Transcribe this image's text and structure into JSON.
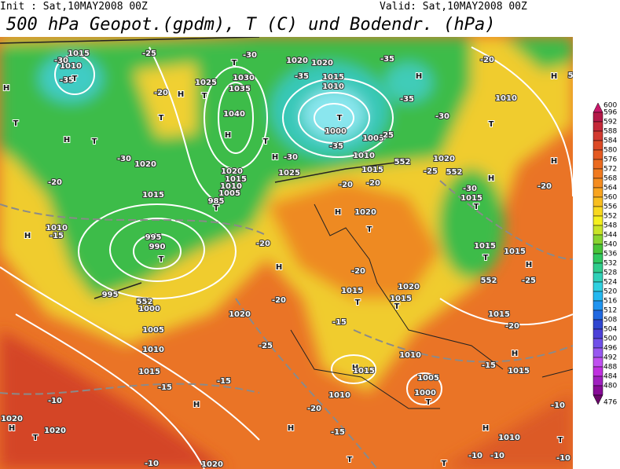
{
  "header": {
    "init": "Init : Sat,10MAY2008 00Z",
    "valid": "Valid: Sat,10MAY2008 00Z",
    "title": "500 hPa Geopot.(gpdm), T (C) und Bodendr. (hPa)"
  },
  "legend": {
    "levels": [
      600,
      596,
      592,
      588,
      584,
      580,
      576,
      572,
      568,
      564,
      560,
      556,
      552,
      548,
      544,
      540,
      536,
      532,
      528,
      524,
      520,
      516,
      512,
      508,
      504,
      500,
      496,
      492,
      488,
      484,
      480,
      476
    ],
    "colors": [
      "#c8186a",
      "#b41848",
      "#c42838",
      "#d23a30",
      "#dc4a26",
      "#e45a22",
      "#ea6a20",
      "#f07a20",
      "#f48c20",
      "#f8a420",
      "#f8be20",
      "#f8d820",
      "#f4f020",
      "#c8e428",
      "#88d430",
      "#48c438",
      "#30c860",
      "#30cc8c",
      "#30d0b8",
      "#30d0e0",
      "#24b8f0",
      "#2094f0",
      "#2068e0",
      "#3046d0",
      "#4c40d8",
      "#7050e8",
      "#9858f0",
      "#c050f0",
      "#c030e0",
      "#a020c0",
      "#880c98",
      "#6a086a"
    ]
  },
  "map": {
    "labels": [
      "-35",
      "T",
      "1015",
      "1010",
      "-30",
      "H",
      "T",
      "H",
      "T",
      "1020",
      "-30",
      "1015",
      "1010",
      "-15",
      "H",
      "-20",
      "995",
      "990",
      "T",
      "995",
      "1000",
      "1005",
      "1010",
      "1015",
      "-15",
      "-10",
      "1020",
      "H",
      "T",
      "1020",
      "H",
      "-15",
      "1020",
      "-25",
      "-20",
      "H",
      "-20",
      "T",
      "985",
      "1020",
      "1015",
      "1010",
      "1005",
      "-25",
      "H",
      "T",
      "-20",
      "T",
      "1025",
      "1030",
      "1035",
      "1040",
      "H",
      "T",
      "-30",
      "1020",
      "1020",
      "-35",
      "1015",
      "1010",
      "T",
      "1000",
      "-35",
      "1005",
      "1010",
      "1015",
      "-25",
      "T",
      "H",
      "-30",
      "1025",
      "-20",
      "-20",
      "H",
      "1020",
      "T",
      "-20",
      "1015",
      "T",
      "-15",
      "1020",
      "1015",
      "T",
      "1010",
      "H",
      "1005",
      "1000",
      "T",
      "1010",
      "-20",
      "H",
      "-15",
      "T",
      "T",
      "1015",
      "-35",
      "H",
      "-35",
      "-30",
      "1020",
      "-25",
      "552",
      "T",
      "H",
      "H",
      "-20",
      "1010",
      "H",
      "T",
      "1015",
      "-30",
      "1015",
      "T",
      "1015",
      "H",
      "-20",
      "-25",
      "552",
      "1015",
      "-20",
      "H",
      "1015",
      "-15",
      "1010",
      "H",
      "-10",
      "-10",
      "-10",
      "-10",
      "1020",
      "552",
      "552",
      "552",
      "T",
      "-10"
    ]
  }
}
